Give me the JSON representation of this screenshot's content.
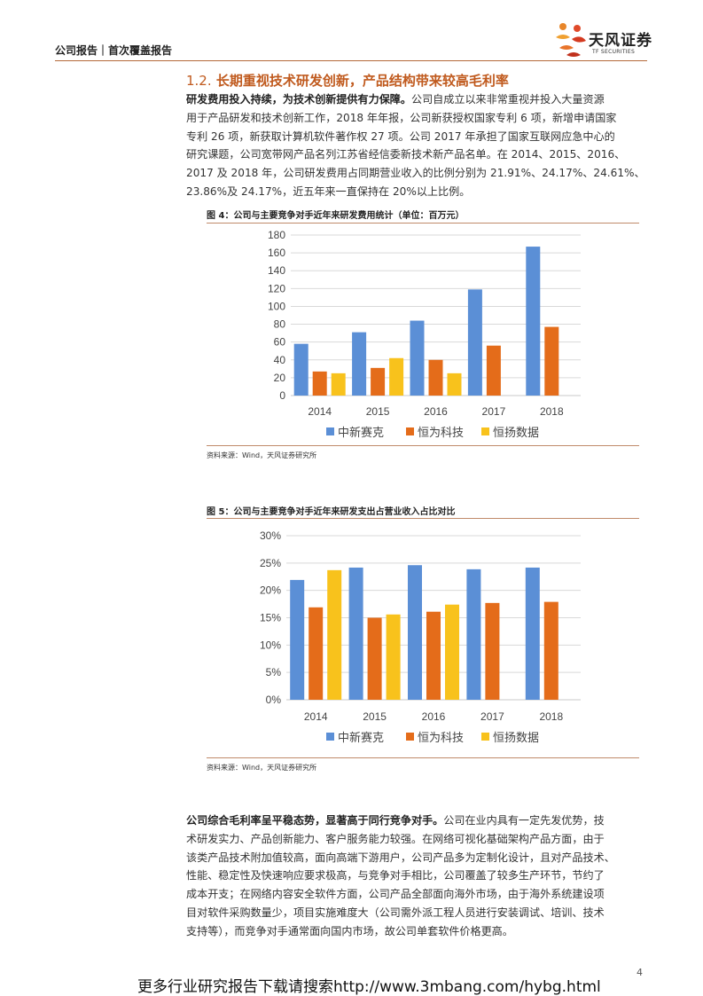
{
  "header": {
    "title": "公司报告｜首次覆盖报告",
    "logo_cn": "天风证券",
    "logo_en": "TF SECURITIES"
  },
  "section": {
    "number": "1.2.",
    "title": "长期重视技术研发创新，产品结构带来较高毛利率"
  },
  "para1": {
    "bold": "研发费用投入持续，为技术创新提供有力保障。",
    "lines": [
      "公司自成立以来非常重视并投入大量资源",
      "用于产品研发和技术创新工作，2018 年年报，公司新获授权国家专利 6 项，新增申请国家",
      "专利 26 项，新获取计算机软件著作权 27 项。公司 2017 年承担了国家互联网应急中心的",
      "研究课题，公司宽带网产品名列江苏省经信委新技术新产品名单。在 2014、2015、2016、",
      "2017 及 2018 年，公司研发费用占同期营业收入的比例分别为 21.91%、24.17%、24.61%、",
      "23.86%及 24.17%，近五年来一直保持在 20%以上比例。"
    ]
  },
  "figure4": {
    "title": "图 4：公司与主要竞争对手近年来研发费用统计（单位：百万元）",
    "source": "资料来源：Wind，天风证券研究所"
  },
  "figure5": {
    "title": "图 5：公司与主要竞争对手近年来研发支出占营业收入占比对比",
    "source": "资料来源：Wind，天风证券研究所"
  },
  "chart_data": [
    {
      "type": "bar",
      "title": "图 4：公司与主要竞争对手近年来研发费用统计（单位：百万元）",
      "categories": [
        "2014",
        "2015",
        "2016",
        "2017",
        "2018"
      ],
      "series": [
        {
          "name": "中新赛克",
          "values": [
            58,
            71,
            84,
            119,
            167
          ],
          "color": "#5b8fd6"
        },
        {
          "name": "恒为科技",
          "values": [
            27,
            31,
            40,
            56,
            77
          ],
          "color": "#e46c1a"
        },
        {
          "name": "恒扬数据",
          "values": [
            25,
            42,
            25,
            null,
            null
          ],
          "color": "#f8c21c"
        }
      ],
      "ylim": [
        0,
        180
      ],
      "yticks": [
        "0",
        "20",
        "40",
        "60",
        "80",
        "100",
        "120",
        "140",
        "160",
        "180"
      ],
      "grid": true,
      "legend": "bottom"
    },
    {
      "type": "bar",
      "title": "图 5：公司与主要竞争对手近年来研发支出占营业收入占比对比",
      "categories": [
        "2014",
        "2015",
        "2016",
        "2017",
        "2018"
      ],
      "series": [
        {
          "name": "中新赛克",
          "values": [
            21.91,
            24.17,
            24.61,
            23.86,
            24.17
          ],
          "color": "#5b8fd6"
        },
        {
          "name": "恒为科技",
          "values": [
            16.9,
            15.0,
            16.1,
            17.7,
            17.9
          ],
          "color": "#e46c1a"
        },
        {
          "name": "恒扬数据",
          "values": [
            23.7,
            15.6,
            17.4,
            null,
            null
          ],
          "color": "#f8c21c"
        }
      ],
      "ylim": [
        0,
        30
      ],
      "yticks": [
        "0%",
        "5%",
        "10%",
        "15%",
        "20%",
        "25%",
        "30%"
      ],
      "grid": true,
      "legend": "bottom"
    }
  ],
  "para2": {
    "bold": "公司综合毛利率呈平稳态势，显著高于同行竞争对手。",
    "lines": [
      "公司在业内具有一定先发优势，技",
      "术研发实力、产品创新能力、客户服务能力较强。在网络可视化基础架构产品方面，由于",
      "该类产品技术附加值较高，面向高端下游用户，公司产品多为定制化设计，且对产品技术、",
      "性能、稳定性及快速响应要求极高，与竞争对手相比，公司覆盖了较多生产环节，节约了",
      "成本开支；在网络内容安全软件方面，公司产品全部面向海外市场，由于海外系统建设项",
      "目对软件采购数量少，项目实施难度大（公司需外派工程人员进行安装调试、培训、技术",
      "支持等），而竞争对手通常面向国内市场，故公司单套软件价格更高。"
    ]
  },
  "page_number": "4",
  "footer": "更多行业研究报告下载请搜索http://www.3mbang.com/hybg.html"
}
